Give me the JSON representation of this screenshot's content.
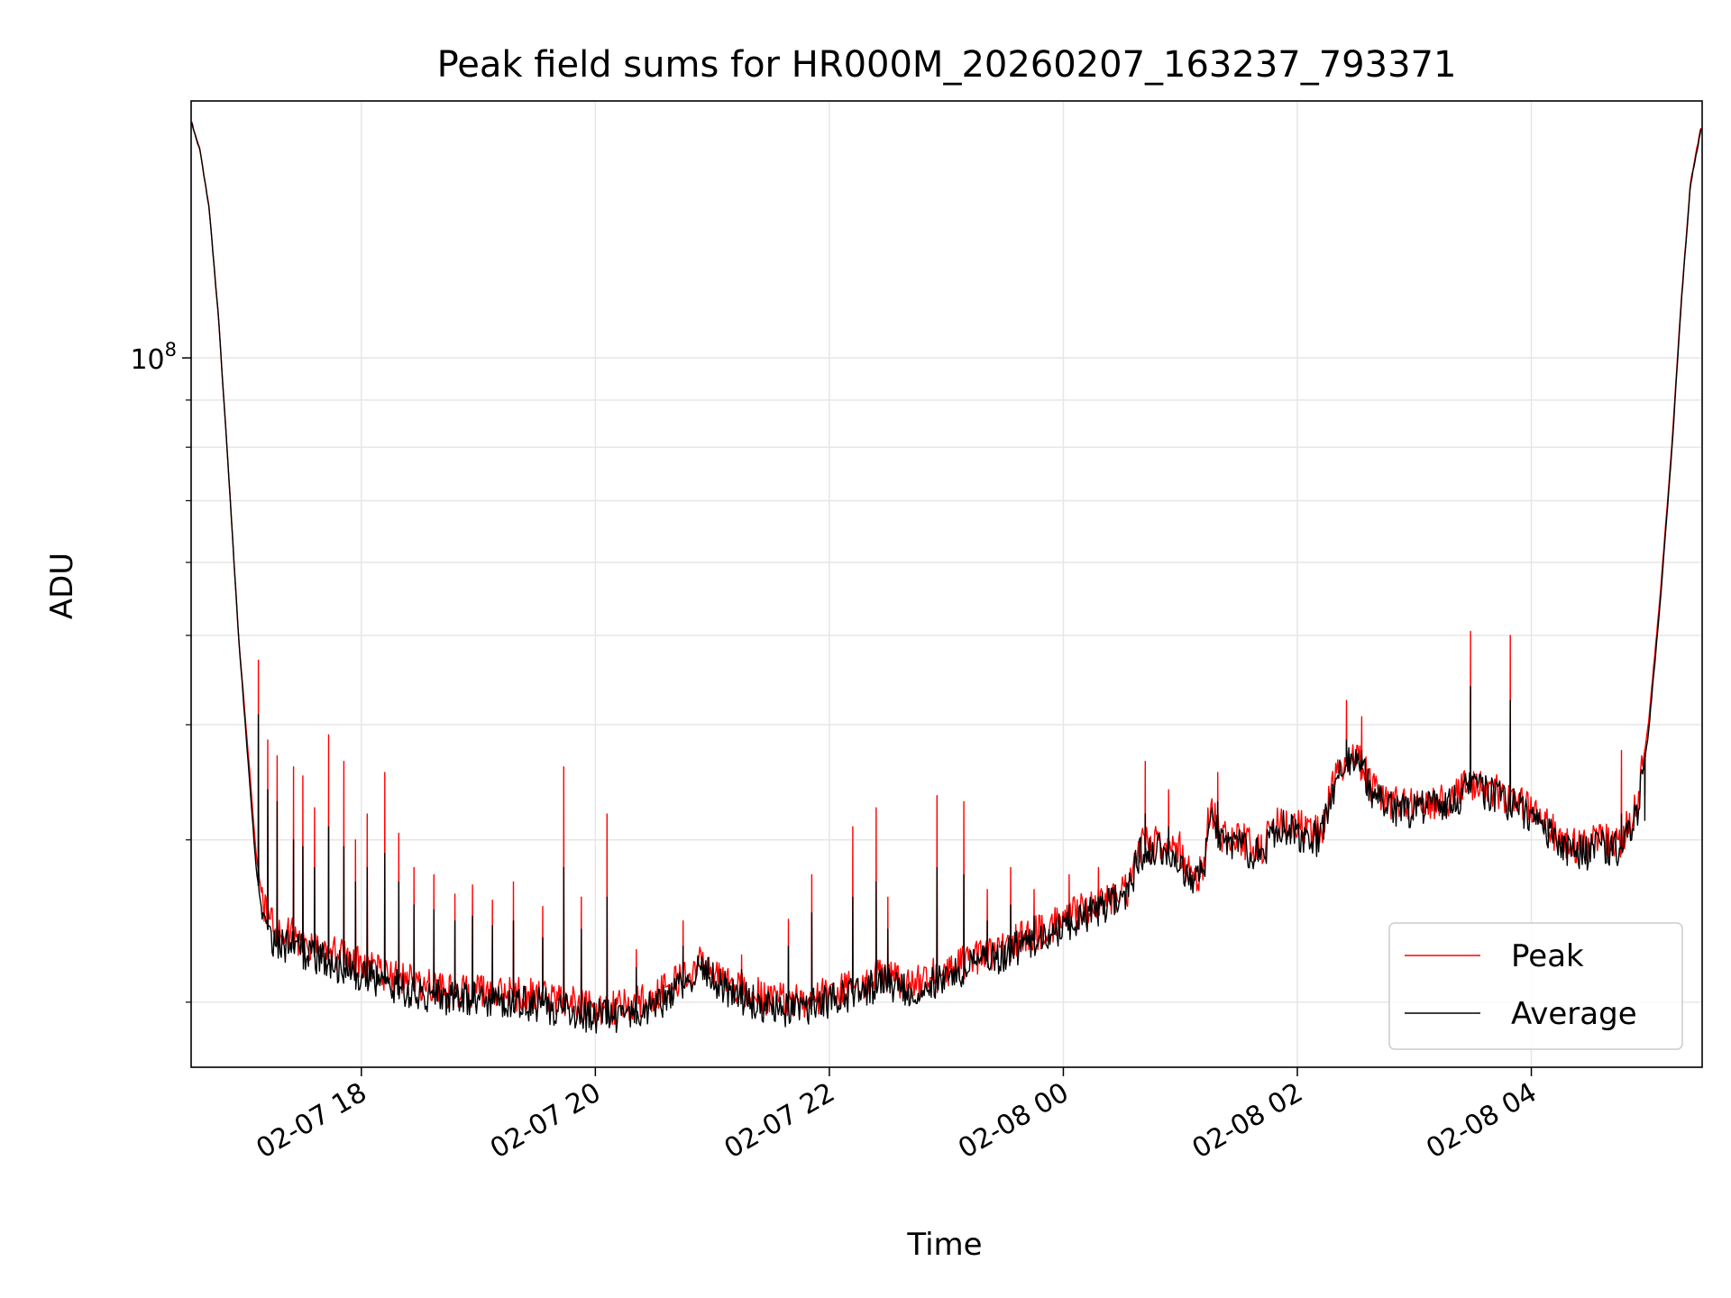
{
  "chart_data": {
    "type": "line",
    "title": "Peak field sums for HR000M_20260207_163237_793371",
    "xlabel": "Time",
    "ylabel": "ADU",
    "yscale": "log",
    "ylim": [
      17000000,
      190000000
    ],
    "xlim_hours": [
      16.545,
      29.46
    ],
    "x_unit": "hours since 2026-02-07 00:00",
    "grid": true,
    "legend_position": "lower-right",
    "x_ticks": [
      {
        "label": "02-07 18",
        "hour": 18
      },
      {
        "label": "02-07 20",
        "hour": 20
      },
      {
        "label": "02-07 22",
        "hour": 22
      },
      {
        "label": "02-08 00",
        "hour": 24
      },
      {
        "label": "02-08 02",
        "hour": 26
      },
      {
        "label": "02-08 04",
        "hour": 28
      }
    ],
    "y_major_ticks": [
      {
        "label_base": "10",
        "label_exp": "8",
        "value": 100000000
      }
    ],
    "y_minor_ticks": [
      20000000,
      30000000,
      40000000,
      50000000,
      60000000,
      70000000,
      80000000,
      90000000
    ],
    "series": [
      {
        "name": "Peak",
        "color": "#ff0000",
        "points": [
          [
            16.55,
            180000000
          ],
          [
            16.62,
            168000000
          ],
          [
            16.7,
            145000000
          ],
          [
            16.78,
            110000000
          ],
          [
            16.86,
            77000000
          ],
          [
            16.95,
            50000000
          ],
          [
            17.05,
            35000000
          ],
          [
            17.1,
            29000000
          ],
          [
            17.15,
            26000000
          ],
          [
            17.22,
            24500000
          ],
          [
            17.35,
            23800000
          ],
          [
            17.5,
            23400000
          ],
          [
            17.7,
            22800000
          ],
          [
            17.9,
            22200000
          ],
          [
            18.1,
            21800000
          ],
          [
            18.3,
            21300000
          ],
          [
            18.5,
            20900000
          ],
          [
            18.7,
            20600000
          ],
          [
            18.9,
            20600000
          ],
          [
            19.1,
            20500000
          ],
          [
            19.3,
            20400000
          ],
          [
            19.5,
            20300000
          ],
          [
            19.7,
            20100000
          ],
          [
            19.9,
            19800000
          ],
          [
            20.1,
            19700000
          ],
          [
            20.3,
            19800000
          ],
          [
            20.5,
            20300000
          ],
          [
            20.7,
            21000000
          ],
          [
            20.9,
            22100000
          ],
          [
            21.1,
            21200000
          ],
          [
            21.3,
            20500000
          ],
          [
            21.5,
            20200000
          ],
          [
            21.7,
            20000000
          ],
          [
            21.9,
            20300000
          ],
          [
            22.1,
            20600000
          ],
          [
            22.3,
            21000000
          ],
          [
            22.45,
            21500000
          ],
          [
            22.6,
            21000000
          ],
          [
            22.8,
            21200000
          ],
          [
            23.0,
            21600000
          ],
          [
            23.2,
            22200000
          ],
          [
            23.4,
            22700000
          ],
          [
            23.6,
            23300000
          ],
          [
            23.8,
            23900000
          ],
          [
            24.0,
            24600000
          ],
          [
            24.2,
            25300000
          ],
          [
            24.4,
            26000000
          ],
          [
            24.55,
            26600000
          ],
          [
            24.65,
            29500000
          ],
          [
            24.8,
            29800000
          ],
          [
            25.0,
            29300000
          ],
          [
            25.1,
            27000000
          ],
          [
            25.2,
            28000000
          ],
          [
            25.25,
            32500000
          ],
          [
            25.35,
            30500000
          ],
          [
            25.5,
            30000000
          ],
          [
            25.7,
            29500000
          ],
          [
            25.85,
            31500000
          ],
          [
            26.0,
            31000000
          ],
          [
            26.2,
            30500000
          ],
          [
            26.35,
            36000000
          ],
          [
            26.5,
            37500000
          ],
          [
            26.65,
            34000000
          ],
          [
            26.8,
            33000000
          ],
          [
            26.95,
            32700000
          ],
          [
            27.1,
            33200000
          ],
          [
            27.25,
            33000000
          ],
          [
            27.45,
            34500000
          ],
          [
            27.65,
            34200000
          ],
          [
            27.85,
            33200000
          ],
          [
            28.05,
            32200000
          ],
          [
            28.25,
            30000000
          ],
          [
            28.45,
            29500000
          ],
          [
            28.6,
            30000000
          ],
          [
            28.75,
            29800000
          ],
          [
            28.9,
            32500000
          ],
          [
            29.0,
            40000000
          ],
          [
            29.1,
            55000000
          ],
          [
            29.2,
            80000000
          ],
          [
            29.28,
            115000000
          ],
          [
            29.36,
            155000000
          ],
          [
            29.45,
            178000000
          ]
        ],
        "spikes": [
          [
            17.12,
            47000000
          ],
          [
            17.2,
            38500000
          ],
          [
            17.28,
            37000000
          ],
          [
            17.42,
            36000000
          ],
          [
            17.5,
            35200000
          ],
          [
            17.6,
            32500000
          ],
          [
            17.72,
            39000000
          ],
          [
            17.85,
            36500000
          ],
          [
            17.95,
            30000000
          ],
          [
            18.05,
            32000000
          ],
          [
            18.2,
            35500000
          ],
          [
            18.32,
            30500000
          ],
          [
            18.45,
            28000000
          ],
          [
            18.62,
            27500000
          ],
          [
            18.8,
            26200000
          ],
          [
            18.95,
            26800000
          ],
          [
            19.12,
            25800000
          ],
          [
            19.3,
            27000000
          ],
          [
            19.55,
            25400000
          ],
          [
            19.73,
            36000000
          ],
          [
            19.88,
            26000000
          ],
          [
            20.1,
            32000000
          ],
          [
            20.35,
            22800000
          ],
          [
            20.75,
            24500000
          ],
          [
            21.25,
            22500000
          ],
          [
            21.65,
            24600000
          ],
          [
            21.85,
            27500000
          ],
          [
            22.2,
            31000000
          ],
          [
            22.4,
            32500000
          ],
          [
            22.5,
            26000000
          ],
          [
            22.92,
            33500000
          ],
          [
            23.15,
            33000000
          ],
          [
            23.35,
            26500000
          ],
          [
            23.55,
            28000000
          ],
          [
            23.75,
            26500000
          ],
          [
            24.05,
            27500000
          ],
          [
            24.3,
            28000000
          ],
          [
            24.7,
            36500000
          ],
          [
            24.9,
            34000000
          ],
          [
            25.32,
            35500000
          ],
          [
            26.42,
            42500000
          ],
          [
            26.55,
            40800000
          ],
          [
            27.48,
            50500000
          ],
          [
            27.82,
            50000000
          ],
          [
            28.3,
            30500000
          ],
          [
            28.77,
            37500000
          ],
          [
            28.97,
            33500000
          ]
        ]
      },
      {
        "name": "Average",
        "color": "#000000",
        "points": [
          [
            16.55,
            180000000
          ],
          [
            16.62,
            168000000
          ],
          [
            16.7,
            145000000
          ],
          [
            16.78,
            110000000
          ],
          [
            16.86,
            77000000
          ],
          [
            16.95,
            50000000
          ],
          [
            17.05,
            34000000
          ],
          [
            17.1,
            28000000
          ],
          [
            17.15,
            25000000
          ],
          [
            17.22,
            23600000
          ],
          [
            17.35,
            23000000
          ],
          [
            17.5,
            22700000
          ],
          [
            17.7,
            22200000
          ],
          [
            17.9,
            21700000
          ],
          [
            18.1,
            21200000
          ],
          [
            18.3,
            20800000
          ],
          [
            18.5,
            20500000
          ],
          [
            18.7,
            20200000
          ],
          [
            18.9,
            20200000
          ],
          [
            19.1,
            20100000
          ],
          [
            19.3,
            20000000
          ],
          [
            19.5,
            19900000
          ],
          [
            19.7,
            19700000
          ],
          [
            19.9,
            19400000
          ],
          [
            20.1,
            19300000
          ],
          [
            20.3,
            19400000
          ],
          [
            20.5,
            19900000
          ],
          [
            20.7,
            20600000
          ],
          [
            20.9,
            21700000
          ],
          [
            21.1,
            20800000
          ],
          [
            21.3,
            20100000
          ],
          [
            21.5,
            19800000
          ],
          [
            21.7,
            19600000
          ],
          [
            21.9,
            19900000
          ],
          [
            22.1,
            20200000
          ],
          [
            22.3,
            20600000
          ],
          [
            22.45,
            21100000
          ],
          [
            22.6,
            20600000
          ],
          [
            22.8,
            20800000
          ],
          [
            23.0,
            21200000
          ],
          [
            23.2,
            21800000
          ],
          [
            23.4,
            22300000
          ],
          [
            23.6,
            22900000
          ],
          [
            23.8,
            23500000
          ],
          [
            24.0,
            24200000
          ],
          [
            24.2,
            24900000
          ],
          [
            24.4,
            25600000
          ],
          [
            24.55,
            26200000
          ],
          [
            24.65,
            29000000
          ],
          [
            24.8,
            29300000
          ],
          [
            25.0,
            28800000
          ],
          [
            25.1,
            26600000
          ],
          [
            25.2,
            27600000
          ],
          [
            25.25,
            32000000
          ],
          [
            25.35,
            30000000
          ],
          [
            25.5,
            29500000
          ],
          [
            25.7,
            29000000
          ],
          [
            25.85,
            31000000
          ],
          [
            26.0,
            30500000
          ],
          [
            26.2,
            30000000
          ],
          [
            26.35,
            35300000
          ],
          [
            26.5,
            37000000
          ],
          [
            26.65,
            33500000
          ],
          [
            26.8,
            32500000
          ],
          [
            26.95,
            32200000
          ],
          [
            27.1,
            32700000
          ],
          [
            27.25,
            32500000
          ],
          [
            27.45,
            34000000
          ],
          [
            27.65,
            33700000
          ],
          [
            27.85,
            32700000
          ],
          [
            28.05,
            31700000
          ],
          [
            28.25,
            29500000
          ],
          [
            28.45,
            29000000
          ],
          [
            28.6,
            29500000
          ],
          [
            28.75,
            29300000
          ],
          [
            28.9,
            32000000
          ],
          [
            29.0,
            39000000
          ],
          [
            29.1,
            54000000
          ],
          [
            29.2,
            79000000
          ],
          [
            29.28,
            114000000
          ],
          [
            29.36,
            154000000
          ],
          [
            29.45,
            177000000
          ]
        ],
        "spikes": [
          [
            17.12,
            41000000
          ],
          [
            17.2,
            34000000
          ],
          [
            17.28,
            33000000
          ],
          [
            17.42,
            30000000
          ],
          [
            17.5,
            29500000
          ],
          [
            17.6,
            28000000
          ],
          [
            17.72,
            31000000
          ],
          [
            17.85,
            29500000
          ],
          [
            17.95,
            27000000
          ],
          [
            18.05,
            28000000
          ],
          [
            18.2,
            29000000
          ],
          [
            18.32,
            27000000
          ],
          [
            18.45,
            25500000
          ],
          [
            18.62,
            25200000
          ],
          [
            18.8,
            24500000
          ],
          [
            18.95,
            24800000
          ],
          [
            19.12,
            24200000
          ],
          [
            19.3,
            24500000
          ],
          [
            19.55,
            23500000
          ],
          [
            19.73,
            28000000
          ],
          [
            19.88,
            24000000
          ],
          [
            20.1,
            26000000
          ],
          [
            20.35,
            21800000
          ],
          [
            20.75,
            23000000
          ],
          [
            21.25,
            21700000
          ],
          [
            21.65,
            23000000
          ],
          [
            21.85,
            25000000
          ],
          [
            22.2,
            26000000
          ],
          [
            22.4,
            27000000
          ],
          [
            22.5,
            24000000
          ],
          [
            22.92,
            28000000
          ],
          [
            23.15,
            27500000
          ],
          [
            23.35,
            24500000
          ],
          [
            23.55,
            25500000
          ],
          [
            23.75,
            24800000
          ],
          [
            24.05,
            25500000
          ],
          [
            24.3,
            26000000
          ],
          [
            24.7,
            32000000
          ],
          [
            24.9,
            31000000
          ],
          [
            25.32,
            33000000
          ],
          [
            26.42,
            38500000
          ],
          [
            26.55,
            37500000
          ],
          [
            27.48,
            44000000
          ],
          [
            27.82,
            42500000
          ],
          [
            28.3,
            29800000
          ],
          [
            28.77,
            32000000
          ],
          [
            28.97,
            31500000
          ]
        ]
      }
    ]
  }
}
